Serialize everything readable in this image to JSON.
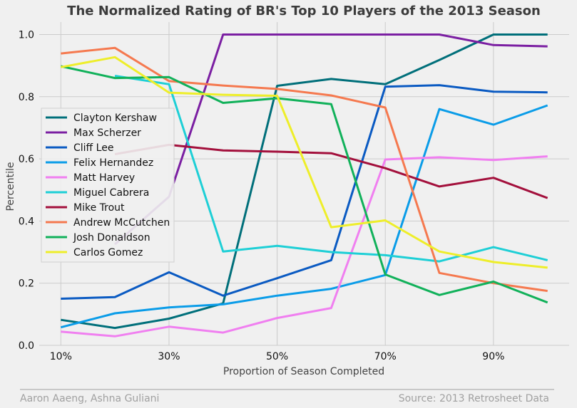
{
  "chart_data": {
    "type": "line",
    "title": "The Normalized Rating of BR's Top 10 Players of the 2013 Season",
    "xlabel": "Proportion of Season Completed",
    "ylabel": "Percentile",
    "x": [
      10,
      20,
      30,
      40,
      50,
      60,
      70,
      80,
      90,
      100
    ],
    "xlim": [
      6,
      104
    ],
    "ylim": [
      0,
      1.04
    ],
    "xticks": [
      10,
      30,
      50,
      70,
      90
    ],
    "xtick_labels": [
      "10%",
      "30%",
      "50%",
      "70%",
      "90%"
    ],
    "yticks": [
      0.0,
      0.2,
      0.4,
      0.6,
      0.8,
      1.0
    ],
    "ytick_labels": [
      "0.0",
      "0.2",
      "0.4",
      "0.6",
      "0.8",
      "1.0"
    ],
    "grid": true,
    "legend_position": "center-left",
    "series": [
      {
        "name": "Clayton Kershaw",
        "color": "#006f7a",
        "values": [
          0.082,
          0.056,
          0.086,
          0.135,
          0.835,
          0.857,
          0.84,
          0.918,
          1.0,
          1.0
        ]
      },
      {
        "name": "Max Scherzer",
        "color": "#7b1fa2",
        "values": [
          null,
          0.325,
          0.478,
          1.0,
          1.0,
          1.0,
          1.0,
          1.0,
          0.966,
          0.962
        ]
      },
      {
        "name": "Cliff Lee",
        "color": "#0a5ac2",
        "values": [
          0.15,
          0.155,
          0.235,
          0.16,
          0.216,
          0.274,
          0.832,
          0.837,
          0.816,
          0.814
        ]
      },
      {
        "name": "Felix Hernandez",
        "color": "#0a9ce8",
        "values": [
          0.058,
          0.103,
          0.122,
          0.132,
          0.16,
          0.182,
          0.226,
          0.76,
          0.71,
          0.772
        ]
      },
      {
        "name": "Matt Harvey",
        "color": "#f07ff0",
        "values": [
          0.044,
          0.029,
          0.06,
          0.041,
          0.088,
          0.12,
          0.598,
          0.605,
          0.596,
          0.608
        ]
      },
      {
        "name": "Miguel Cabrera",
        "color": "#1ecfd6",
        "values": [
          null,
          0.867,
          0.84,
          0.302,
          0.32,
          0.3,
          0.29,
          0.27,
          0.316,
          0.274
        ]
      },
      {
        "name": "Mike Trout",
        "color": "#a3103c",
        "values": [
          null,
          0.615,
          0.645,
          0.627,
          0.623,
          0.618,
          0.57,
          0.511,
          0.539,
          0.474
        ]
      },
      {
        "name": "Andrew McCutchen",
        "color": "#f5794f",
        "values": [
          0.939,
          0.957,
          0.85,
          0.836,
          0.825,
          0.804,
          0.765,
          0.233,
          0.2,
          0.175
        ]
      },
      {
        "name": "Josh Donaldson",
        "color": "#11b15a",
        "values": [
          0.898,
          0.86,
          0.863,
          0.78,
          0.795,
          0.776,
          0.228,
          0.162,
          0.205,
          0.138
        ]
      },
      {
        "name": "Carlos Gomez",
        "color": "#eeee2a",
        "values": [
          0.895,
          0.927,
          0.813,
          0.806,
          0.803,
          0.38,
          0.402,
          0.302,
          0.268,
          0.25
        ]
      }
    ]
  },
  "footer": {
    "left": "Aaron Aaeng, Ashna Guliani",
    "right": "Source: 2013 Retrosheet Data"
  },
  "colors": {
    "background": "#f0f0f0",
    "grid": "#cbcbcb"
  }
}
